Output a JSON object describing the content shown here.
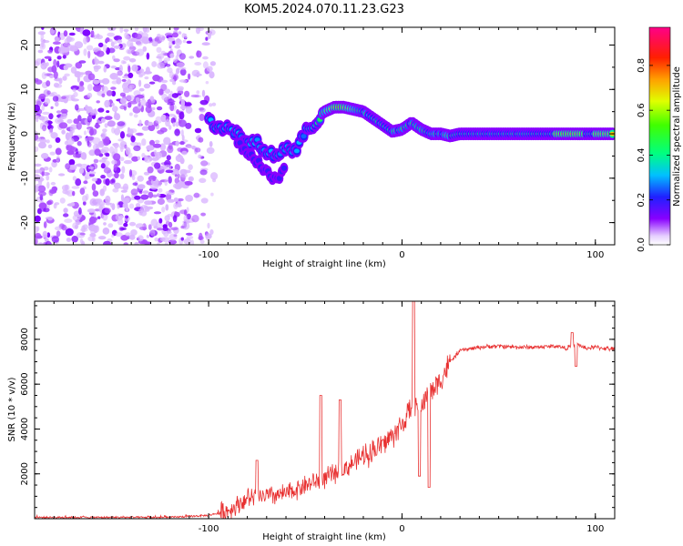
{
  "figure_title": "KOM5.2024.070.11.23.G23",
  "chart_data": [
    {
      "type": "heatmap",
      "xlabel": "Height of straight line (km)",
      "ylabel": "Frequency (Hz)",
      "xlim": [
        -190,
        110
      ],
      "ylim": [
        -25,
        24
      ],
      "xticks": [
        -100,
        0,
        100
      ],
      "yticks": [
        -20,
        -10,
        0,
        10,
        20
      ],
      "colorbar": {
        "label": "Normalized spectral amplitude",
        "range": [
          0,
          0.97
        ],
        "ticks": [
          0.0,
          0.2,
          0.4,
          0.6,
          0.8
        ],
        "tick_labels": [
          "0.0",
          "0.2",
          "0.4",
          "0.6",
          "0.8"
        ],
        "colormap": "rainbow (violet-blue-cyan-green-yellow-red-pink)"
      },
      "noise_region": [
        -190,
        -97
      ],
      "ridge": {
        "description": "main spectral ridge (frequency in Hz vs height in km)",
        "x": [
          -100,
          -95,
          -90,
          -85,
          -80,
          -75,
          -70,
          -65,
          -60,
          -55,
          -50,
          -45,
          -40,
          -35,
          -30,
          -25,
          -20,
          -15,
          -10,
          -5,
          0,
          5,
          10,
          15,
          20,
          25,
          30,
          40,
          50,
          60,
          70,
          80,
          90,
          100,
          110
        ],
        "y": [
          3,
          1,
          2,
          0,
          -2,
          -2,
          -4,
          -5,
          -3,
          -4,
          1,
          2,
          5,
          6,
          6,
          5.5,
          5,
          3.5,
          2,
          0.5,
          1,
          2.5,
          1,
          0,
          0,
          -0.5,
          0,
          0,
          0,
          0,
          0,
          0,
          0,
          0,
          0
        ]
      },
      "branches": [
        {
          "x": [
            -85,
            -80,
            -75,
            -70,
            -65,
            -60
          ],
          "y": [
            -2,
            -4,
            -6,
            -9,
            -10,
            -8
          ]
        }
      ]
    },
    {
      "type": "line",
      "xlabel": "Height of straight line (km)",
      "ylabel": "SNR (10 * v/v)",
      "xlim": [
        -190,
        110
      ],
      "ylim": [
        0,
        9700
      ],
      "xticks": [
        -100,
        0,
        100
      ],
      "yticks": [
        2000,
        4000,
        6000,
        8000
      ],
      "color": "#e83030",
      "envelope": {
        "x": [
          -190,
          -150,
          -120,
          -100,
          -90,
          -80,
          -70,
          -60,
          -50,
          -40,
          -30,
          -20,
          -10,
          -5,
          0,
          5,
          10,
          15,
          20,
          25,
          30,
          40,
          50,
          60,
          70,
          80,
          85,
          90,
          95,
          100,
          110
        ],
        "y": [
          60,
          60,
          60,
          150,
          350,
          900,
          1000,
          1100,
          1500,
          1800,
          2200,
          2800,
          3300,
          3700,
          4200,
          4900,
          5100,
          5700,
          6200,
          7000,
          7500,
          7650,
          7700,
          7650,
          7650,
          7700,
          7600,
          7800,
          7600,
          7650,
          7550
        ]
      },
      "spikes": [
        {
          "x": -75,
          "y": 2600
        },
        {
          "x": -42,
          "y": 5500
        },
        {
          "x": -32,
          "y": 5300
        },
        {
          "x": 6,
          "y": 9700
        },
        {
          "x": 9,
          "y": 1900
        },
        {
          "x": 14,
          "y": 1400
        },
        {
          "x": 88,
          "y": 8300
        },
        {
          "x": 90,
          "y": 6800
        }
      ]
    }
  ]
}
